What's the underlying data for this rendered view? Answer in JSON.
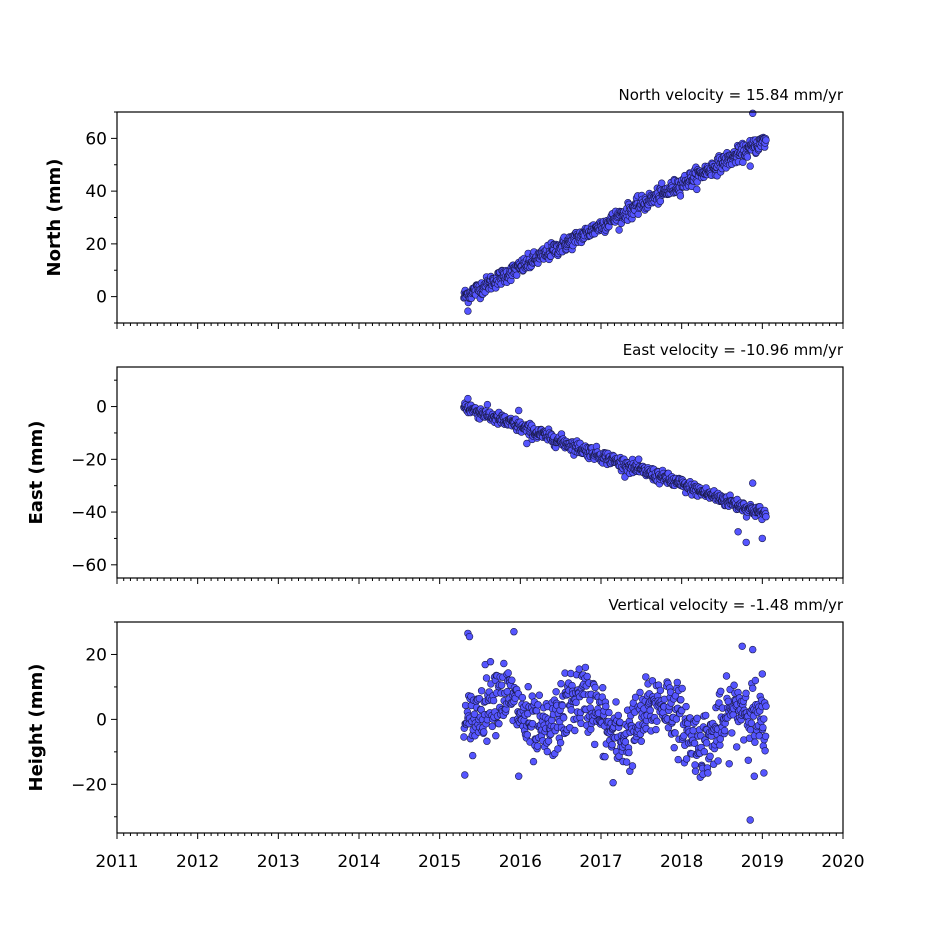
{
  "chart_data": [
    {
      "type": "scatter",
      "title": "North velocity = 15.84 mm/yr",
      "ylabel": "North (mm)",
      "xlim": [
        2011,
        2020
      ],
      "ylim": [
        -10,
        70
      ],
      "yticks": [
        0,
        20,
        40,
        60
      ],
      "yticklabels": [
        "0",
        "20",
        "40",
        "60"
      ],
      "model": {
        "start": 2015.3,
        "end": 2019.05,
        "start_value": 0,
        "slope": 15.84,
        "noise": 1.5,
        "step": 0.0055
      },
      "outliers": [
        [
          2015.35,
          -5.5
        ],
        [
          2018.88,
          69.5
        ],
        [
          2018.85,
          49.5
        ]
      ],
      "marker_color": "#5555ff"
    },
    {
      "type": "scatter",
      "title": "East velocity = -10.96 mm/yr",
      "ylabel": "East (mm)",
      "xlim": [
        2011,
        2020
      ],
      "ylim": [
        -65,
        15
      ],
      "yticks": [
        0,
        -20,
        -40,
        -60
      ],
      "yticklabels": [
        "0",
        "−20",
        "−40",
        "−60"
      ],
      "model": {
        "start": 2015.3,
        "end": 2019.05,
        "start_value": 0,
        "slope": -10.96,
        "noise": 1.2,
        "step": 0.0055
      },
      "outliers": [
        [
          2015.35,
          3
        ],
        [
          2015.98,
          -1.5
        ],
        [
          2016.08,
          -14
        ],
        [
          2018.7,
          -47.5
        ],
        [
          2018.8,
          -51.5
        ],
        [
          2018.88,
          -29
        ],
        [
          2019.0,
          -50
        ]
      ],
      "marker_color": "#5555ff"
    },
    {
      "type": "scatter",
      "title": "Vertical velocity = -1.48 mm/yr",
      "ylabel": "Height (mm)",
      "xlim": [
        2011,
        2020
      ],
      "ylim": [
        -35,
        30
      ],
      "yticks": [
        20,
        0,
        -20
      ],
      "yticklabels": [
        "20",
        "0",
        "−20"
      ],
      "model": {
        "start": 2015.3,
        "end": 2019.05,
        "start_value": 3,
        "slope": -1.48,
        "noise": 5.0,
        "step": 0.0055
      },
      "outliers": [
        [
          2015.35,
          26.5
        ],
        [
          2015.37,
          25.5
        ],
        [
          2015.92,
          27
        ],
        [
          2015.98,
          -17.5
        ],
        [
          2017.15,
          -19.5
        ],
        [
          2018.75,
          22.5
        ],
        [
          2018.88,
          21.5
        ],
        [
          2018.85,
          -31
        ],
        [
          2018.9,
          -17.5
        ],
        [
          2019.02,
          -16.5
        ],
        [
          2019.0,
          14
        ]
      ],
      "marker_color": "#5555ff"
    }
  ],
  "xticklabels": [
    "2011",
    "2012",
    "2013",
    "2014",
    "2015",
    "2016",
    "2017",
    "2018",
    "2019",
    "2020"
  ]
}
